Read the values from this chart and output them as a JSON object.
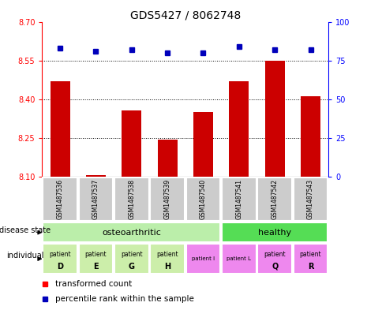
{
  "title": "GDS5427 / 8062748",
  "samples": [
    "GSM1487536",
    "GSM1487537",
    "GSM1487538",
    "GSM1487539",
    "GSM1487540",
    "GSM1487541",
    "GSM1487542",
    "GSM1487543"
  ],
  "red_values": [
    8.47,
    8.107,
    8.355,
    8.245,
    8.35,
    8.47,
    8.55,
    8.41
  ],
  "blue_values": [
    83,
    81,
    82,
    80,
    80,
    84,
    82,
    82
  ],
  "ylim_left": [
    8.1,
    8.7
  ],
  "ylim_right": [
    0,
    100
  ],
  "yticks_left": [
    8.1,
    8.25,
    8.4,
    8.55,
    8.7
  ],
  "yticks_right": [
    0,
    25,
    50,
    75,
    100
  ],
  "bar_color": "#cc0000",
  "dot_color": "#0000bb",
  "sample_label_bg": "#cccccc",
  "osteoarthritic_color": "#bbeeaa",
  "healthy_color": "#55dd55",
  "indiv_osteo_bold_color": "#cceeaa",
  "indiv_pink_color": "#ee88ee",
  "individuals": [
    {
      "label_top": "patient",
      "label_bot": "D",
      "idx": 0,
      "color": "#cceeaa",
      "bold": true
    },
    {
      "label_top": "patient",
      "label_bot": "E",
      "idx": 1,
      "color": "#cceeaa",
      "bold": true
    },
    {
      "label_top": "patient",
      "label_bot": "G",
      "idx": 2,
      "color": "#cceeaa",
      "bold": true
    },
    {
      "label_top": "patient",
      "label_bot": "H",
      "idx": 3,
      "color": "#cceeaa",
      "bold": true
    },
    {
      "label_top": "patient I",
      "label_bot": "",
      "idx": 4,
      "color": "#ee88ee",
      "bold": false
    },
    {
      "label_top": "patient L",
      "label_bot": "",
      "idx": 5,
      "color": "#ee88ee",
      "bold": false
    },
    {
      "label_top": "patient",
      "label_bot": "Q",
      "idx": 6,
      "color": "#ee88ee",
      "bold": true
    },
    {
      "label_top": "patient",
      "label_bot": "R",
      "idx": 7,
      "color": "#ee88ee",
      "bold": true
    }
  ]
}
